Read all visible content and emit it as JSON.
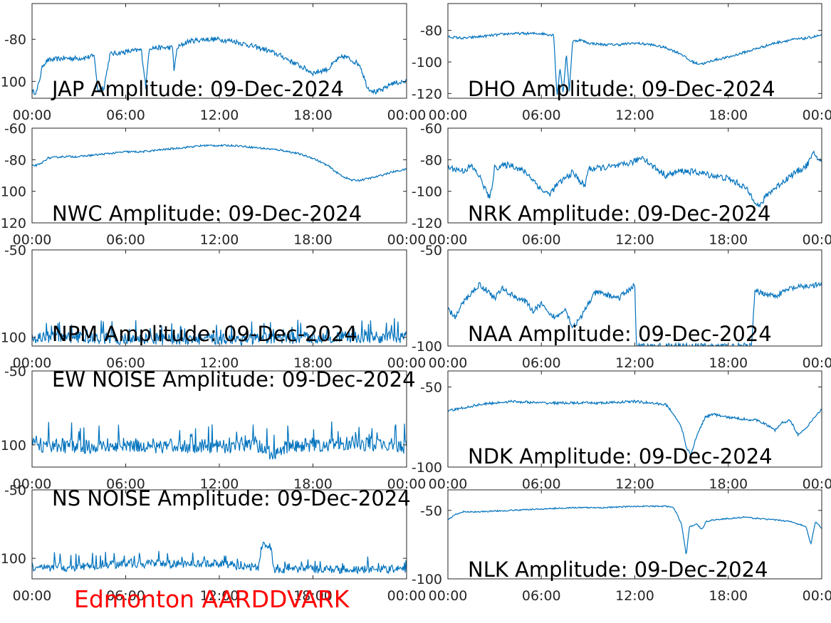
{
  "footer": {
    "station_label": "Edmonton AARDDVARK",
    "color": "#ff0000"
  },
  "style": {
    "line_color": "#0072bd",
    "axis_color": "#262626"
  },
  "chart_data": [
    {
      "type": "line",
      "title": "JAP Amplitude: 09-Dec-2024",
      "xlabel": "",
      "ylabel": "",
      "xlim": [
        0,
        24
      ],
      "ylim": [
        -108,
        -63
      ],
      "x_ticks": [
        0,
        6,
        12,
        18,
        24
      ],
      "x_tick_labels": [
        "00:00",
        "06:00",
        "12:00",
        "18:00",
        "00:00"
      ],
      "y_ticks": [
        -80,
        -100
      ],
      "y_tick_labels": [
        "-80",
        "-100"
      ],
      "noise": 1.2,
      "series": [
        {
          "x": [
            0,
            0.3,
            0.7,
            1,
            2,
            3,
            4,
            4.2,
            4.6,
            5,
            6,
            7,
            7.3,
            7.5,
            8,
            9,
            9.1,
            9.3,
            10,
            11,
            12,
            13,
            14,
            15,
            16,
            17,
            18,
            19,
            19.5,
            20,
            21,
            21.5,
            22,
            22.5,
            23,
            24
          ],
          "y": [
            -105,
            -105,
            -92,
            -90,
            -89,
            -89,
            -88,
            -104,
            -103,
            -87,
            -86,
            -85,
            -103,
            -84,
            -84,
            -84,
            -95,
            -84,
            -81,
            -80,
            -80,
            -81,
            -83,
            -85,
            -88,
            -92,
            -96,
            -94,
            -90,
            -88,
            -92,
            -103,
            -105,
            -104,
            -101,
            -100
          ]
        }
      ]
    },
    {
      "type": "line",
      "title": "DHO Amplitude: 09-Dec-2024",
      "xlabel": "",
      "ylabel": "",
      "xlim": [
        0,
        24
      ],
      "ylim": [
        -123,
        -63
      ],
      "x_ticks": [
        0,
        6,
        12,
        18,
        24
      ],
      "x_tick_labels": [
        "00:00",
        "06:00",
        "12:00",
        "18:00",
        "00:00"
      ],
      "y_ticks": [
        -80,
        -100,
        -120
      ],
      "y_tick_labels": [
        "-80",
        "-100",
        "-120"
      ],
      "noise": 0.8,
      "series": [
        {
          "x": [
            0,
            1,
            2,
            3,
            4,
            5,
            6,
            6.8,
            7,
            7.2,
            7.4,
            7.6,
            7.8,
            8,
            8.5,
            9,
            10,
            11,
            12,
            13,
            14,
            15,
            15.5,
            16,
            16.5,
            17,
            18,
            19,
            20,
            21,
            22,
            23,
            24
          ],
          "y": [
            -84,
            -85,
            -84,
            -83,
            -82,
            -82,
            -82,
            -83,
            -122,
            -104,
            -120,
            -95,
            -118,
            -87,
            -86,
            -88,
            -89,
            -89,
            -88,
            -89,
            -91,
            -95,
            -99,
            -101,
            -101,
            -99,
            -97,
            -94,
            -91,
            -88,
            -86,
            -85,
            -83
          ]
        }
      ]
    },
    {
      "type": "line",
      "title": "NWC Amplitude: 09-Dec-2024",
      "xlabel": "",
      "ylabel": "",
      "xlim": [
        0,
        24
      ],
      "ylim": [
        -120,
        -60
      ],
      "x_ticks": [
        0,
        6,
        12,
        18,
        24
      ],
      "x_tick_labels": [
        "00:00",
        "06:00",
        "12:00",
        "18:00",
        "00:00"
      ],
      "y_ticks": [
        -60,
        -80,
        -100,
        -120
      ],
      "y_tick_labels": [
        "-60",
        "-80",
        "-100",
        "-120"
      ],
      "noise": 0.6,
      "series": [
        {
          "x": [
            0,
            0.5,
            1,
            2,
            3,
            4,
            5,
            6,
            7,
            8,
            9,
            10,
            11,
            12,
            13,
            14,
            15,
            16,
            17,
            18,
            19,
            19.5,
            20,
            20.5,
            21,
            22,
            23,
            24
          ],
          "y": [
            -84,
            -83,
            -79,
            -78,
            -78,
            -77,
            -76,
            -75,
            -75,
            -74,
            -73,
            -72,
            -71,
            -71,
            -71,
            -72,
            -73,
            -74,
            -76,
            -79,
            -84,
            -88,
            -91,
            -93,
            -93,
            -91,
            -88,
            -86
          ]
        }
      ]
    },
    {
      "type": "line",
      "title": "NRK Amplitude: 09-Dec-2024",
      "xlabel": "",
      "ylabel": "",
      "xlim": [
        0,
        24
      ],
      "ylim": [
        -120,
        -60
      ],
      "x_ticks": [
        0,
        6,
        12,
        18,
        24
      ],
      "x_tick_labels": [
        "00:00",
        "06:00",
        "12:00",
        "18:00",
        "00:00"
      ],
      "y_ticks": [
        -60,
        -80,
        -100,
        -120
      ],
      "y_tick_labels": [
        "-60",
        "-80",
        "-100",
        "-120"
      ],
      "noise": 2.0,
      "series": [
        {
          "x": [
            0,
            1,
            1.5,
            2,
            2.7,
            3,
            4,
            5,
            5.5,
            6,
            6.5,
            7,
            8,
            8.8,
            9,
            10,
            11,
            12,
            12.5,
            13,
            14,
            15,
            16,
            17,
            18,
            19,
            19.5,
            20,
            20.5,
            21,
            22,
            23,
            23.5,
            24
          ],
          "y": [
            -85,
            -87,
            -84,
            -90,
            -105,
            -85,
            -83,
            -88,
            -93,
            -99,
            -102,
            -96,
            -88,
            -97,
            -86,
            -85,
            -84,
            -81,
            -78,
            -83,
            -90,
            -87,
            -88,
            -90,
            -92,
            -97,
            -103,
            -110,
            -102,
            -98,
            -90,
            -84,
            -76,
            -82
          ]
        }
      ]
    },
    {
      "type": "line",
      "title": "NPM Amplitude: 09-Dec-2024",
      "xlabel": "",
      "ylabel": "",
      "xlim": [
        0,
        24
      ],
      "ylim": [
        -105,
        -50
      ],
      "x_ticks": [
        0,
        6,
        12,
        18,
        24
      ],
      "x_tick_labels": [
        "00:00",
        "06:00",
        "12:00",
        "18:00",
        "00:00"
      ],
      "y_ticks": [
        -50,
        -100
      ],
      "y_tick_labels": [
        "-50",
        "-100"
      ],
      "noise": 3.5,
      "series": [
        {
          "x": [
            0,
            3,
            6,
            9,
            12,
            15,
            18,
            21,
            24
          ],
          "y": [
            -100,
            -100,
            -101,
            -101,
            -101,
            -101,
            -100,
            -100,
            -100
          ]
        }
      ]
    },
    {
      "type": "line",
      "title": "NAA Amplitude: 09-Dec-2024",
      "xlabel": "",
      "ylabel": "",
      "xlim": [
        0,
        24
      ],
      "ylim": [
        -100,
        -50
      ],
      "x_ticks": [
        0,
        6,
        12,
        18,
        24
      ],
      "x_tick_labels": [
        "00:00",
        "06:00",
        "12:00",
        "18:00",
        "00:00"
      ],
      "y_ticks": [
        -50,
        -100
      ],
      "y_tick_labels": [
        "-50",
        "-100"
      ],
      "noise": 1.5,
      "series": [
        {
          "x": [
            0,
            0.5,
            1,
            2,
            2.5,
            3,
            3.5,
            4,
            5,
            5.5,
            6,
            6.5,
            7,
            7.5,
            8,
            8.5,
            9,
            9.5,
            10,
            11,
            12,
            12.1,
            12.3,
            13,
            14,
            15,
            16,
            17,
            18,
            19,
            19.5,
            19.7,
            20,
            21,
            22,
            23,
            24
          ],
          "y": [
            -81,
            -85,
            -77,
            -68,
            -71,
            -75,
            -70,
            -73,
            -77,
            -82,
            -78,
            -84,
            -85,
            -80,
            -90,
            -86,
            -78,
            -72,
            -73,
            -75,
            -68,
            -100,
            -100,
            -100,
            -100,
            -100,
            -100,
            -100,
            -100,
            -100,
            -100,
            -72,
            -72,
            -74,
            -70,
            -69,
            -68
          ]
        }
      ]
    },
    {
      "type": "line",
      "title": "EW NOISE Amplitude: 09-Dec-2024",
      "xlabel": "",
      "ylabel": "",
      "xlim": [
        0,
        24
      ],
      "ylim": [
        -115,
        -50
      ],
      "x_ticks": [
        0,
        6,
        12,
        18,
        24
      ],
      "x_tick_labels": [
        "00:00",
        "06:00",
        "12:00",
        "18:00",
        "00:00"
      ],
      "y_ticks": [
        -50,
        -100
      ],
      "y_tick_labels": [
        "-50",
        "-100"
      ],
      "noise": 5.0,
      "series": [
        {
          "x": [
            0,
            3,
            6,
            9,
            12,
            14.5,
            15,
            15.5,
            16,
            18,
            21,
            24
          ],
          "y": [
            -100,
            -101,
            -100,
            -101,
            -101,
            -101,
            -103,
            -107,
            -102,
            -100,
            -99,
            -101
          ]
        }
      ]
    },
    {
      "type": "line",
      "title": "NDK Amplitude: 09-Dec-2024",
      "xlabel": "",
      "ylabel": "",
      "xlim": [
        0,
        24
      ],
      "ylim": [
        -100,
        -40
      ],
      "x_ticks": [
        0,
        6,
        12,
        18,
        24
      ],
      "x_tick_labels": [
        "00:00",
        "06:00",
        "12:00",
        "18:00",
        "00:00"
      ],
      "y_ticks": [
        -50,
        -100
      ],
      "y_tick_labels": [
        "-50",
        "-100"
      ],
      "noise": 0.8,
      "series": [
        {
          "x": [
            0,
            1,
            2,
            3,
            4,
            6,
            8,
            10,
            12,
            13,
            14,
            14.5,
            15,
            15.3,
            15.6,
            16,
            16.5,
            17,
            18,
            19,
            20,
            20.5,
            21,
            21.5,
            22,
            22.5,
            23,
            23.5,
            24
          ],
          "y": [
            -65,
            -63,
            -61,
            -60,
            -59,
            -60,
            -60,
            -60,
            -59,
            -60,
            -61,
            -67,
            -75,
            -88,
            -92,
            -80,
            -69,
            -67,
            -69,
            -70,
            -71,
            -74,
            -77,
            -72,
            -71,
            -80,
            -76,
            -69,
            -64
          ]
        }
      ]
    },
    {
      "type": "line",
      "title": "NS NOISE Amplitude: 09-Dec-2024",
      "xlabel": "",
      "ylabel": "",
      "xlim": [
        0,
        24
      ],
      "ylim": [
        -115,
        -50
      ],
      "x_ticks": [
        0,
        6,
        12,
        18,
        24
      ],
      "x_tick_labels": [
        "00:00",
        "06:00",
        "12:00",
        "18:00",
        "00:00"
      ],
      "y_ticks": [
        -50,
        -100
      ],
      "y_tick_labels": [
        "-50",
        "-100"
      ],
      "noise": 3.0,
      "series": [
        {
          "x": [
            0,
            1.3,
            1.5,
            2,
            3,
            6,
            9,
            12,
            14.5,
            14.7,
            15.3,
            15.5,
            18,
            21,
            24
          ],
          "y": [
            -107,
            -107,
            -104,
            -107,
            -106,
            -104,
            -104,
            -104,
            -107,
            -90,
            -92,
            -108,
            -108,
            -108,
            -108
          ]
        }
      ]
    },
    {
      "type": "line",
      "title": "NLK Amplitude: 09-Dec-2024",
      "xlabel": "",
      "ylabel": "",
      "xlim": [
        0,
        24
      ],
      "ylim": [
        -100,
        -35
      ],
      "x_ticks": [
        0,
        6,
        12,
        18,
        24
      ],
      "x_tick_labels": [
        "00:00",
        "06:00",
        "12:00",
        "18:00",
        "00:00"
      ],
      "y_ticks": [
        -50,
        -100
      ],
      "y_tick_labels": [
        "-50",
        "-100"
      ],
      "noise": 0.5,
      "series": [
        {
          "x": [
            0,
            0.5,
            1,
            2,
            4,
            6,
            8,
            10,
            12,
            13,
            14,
            14.5,
            15,
            15.3,
            15.5,
            16,
            16.3,
            16.6,
            17,
            18,
            19,
            20,
            21,
            22,
            23,
            23.3,
            23.6,
            24
          ],
          "y": [
            -57,
            -53,
            -51,
            -51,
            -50,
            -49,
            -48,
            -48,
            -47,
            -47,
            -47,
            -48,
            -60,
            -83,
            -62,
            -60,
            -64,
            -58,
            -57,
            -56,
            -55,
            -56,
            -57,
            -58,
            -62,
            -75,
            -58,
            -63
          ]
        }
      ]
    }
  ]
}
